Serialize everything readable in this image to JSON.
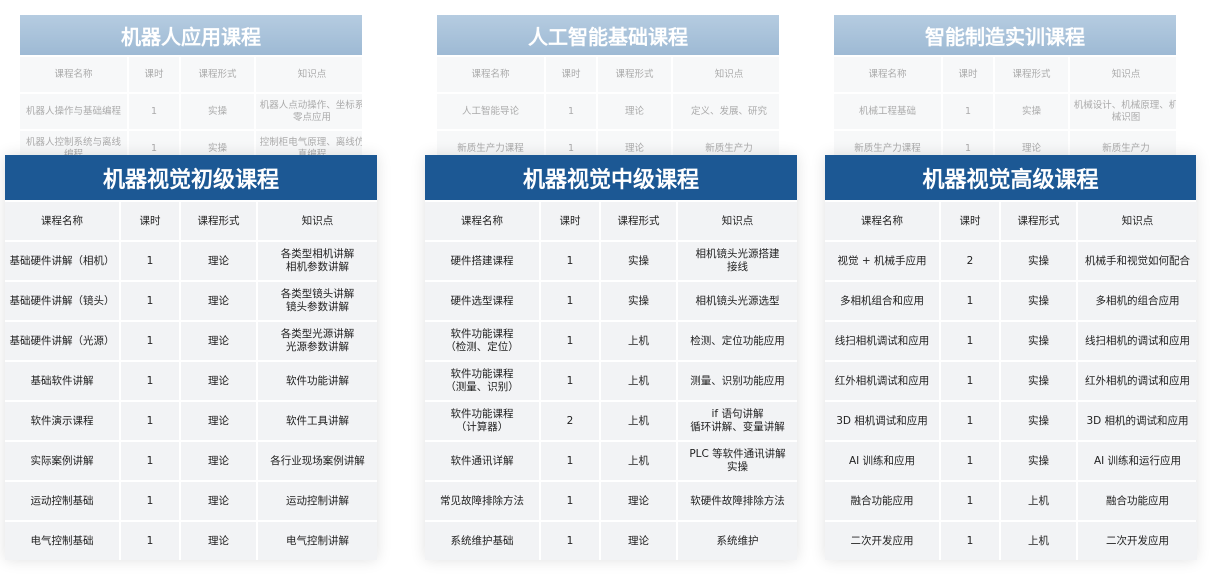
{
  "back_cards": [
    {
      "title": "机器人应用课程",
      "columns": [
        "课程名称",
        "课时",
        "课程形式",
        "知识点"
      ],
      "rows": [
        [
          "机器人操作与基础编程",
          "1",
          "实操",
          "机器人点动操作、坐标系\n零点应用"
        ],
        [
          "机器人控制系统与离线\n编程",
          "1",
          "实操",
          "控制柜电气原理、离线仿\n真编程"
        ]
      ]
    },
    {
      "title": "人工智能基础课程",
      "columns": [
        "课程名称",
        "课时",
        "课程形式",
        "知识点"
      ],
      "rows": [
        [
          "人工智能导论",
          "1",
          "理论",
          "定义、发展、研究"
        ],
        [
          "新质生产力课程",
          "1",
          "理论",
          "新质生产力"
        ]
      ]
    },
    {
      "title": "智能制造实训课程",
      "columns": [
        "课程名称",
        "课时",
        "课程形式",
        "知识点"
      ],
      "rows": [
        [
          "机械工程基础",
          "1",
          "实操",
          "机械设计、机械原理、机\n械识图"
        ],
        [
          "新质生产力课程",
          "1",
          "理论",
          "新质生产力"
        ]
      ]
    }
  ],
  "front_cards": [
    {
      "title": "机器视觉初级课程",
      "columns": [
        "课程名称",
        "课时",
        "课程形式",
        "知识点"
      ],
      "rows": [
        [
          "基础硬件讲解（相机）",
          "1",
          "理论",
          "各类型相机讲解\n相机参数讲解"
        ],
        [
          "基础硬件讲解（镜头）",
          "1",
          "理论",
          "各类型镜头讲解\n镜头参数讲解"
        ],
        [
          "基础硬件讲解（光源）",
          "1",
          "理论",
          "各类型光源讲解\n光源参数讲解"
        ],
        [
          "基础软件讲解",
          "1",
          "理论",
          "软件功能讲解"
        ],
        [
          "软件演示课程",
          "1",
          "理论",
          "软件工具讲解"
        ],
        [
          "实际案例讲解",
          "1",
          "理论",
          "各行业现场案例讲解"
        ],
        [
          "运动控制基础",
          "1",
          "理论",
          "运动控制讲解"
        ],
        [
          "电气控制基础",
          "1",
          "理论",
          "电气控制讲解"
        ]
      ]
    },
    {
      "title": "机器视觉中级课程",
      "columns": [
        "课程名称",
        "课时",
        "课程形式",
        "知识点"
      ],
      "rows": [
        [
          "硬件搭建课程",
          "1",
          "实操",
          "相机镜头光源搭建\n接线"
        ],
        [
          "硬件选型课程",
          "1",
          "实操",
          "相机镜头光源选型"
        ],
        [
          "软件功能课程\n（检测、定位）",
          "1",
          "上机",
          "检测、定位功能应用"
        ],
        [
          "软件功能课程\n（测量、识别）",
          "1",
          "上机",
          "测量、识别功能应用"
        ],
        [
          "软件功能课程\n（计算器）",
          "2",
          "上机",
          "if 语句讲解\n循环讲解、变量讲解"
        ],
        [
          "软件通讯详解",
          "1",
          "上机",
          "PLC 等软件通讯讲解\n实操"
        ],
        [
          "常见故障排除方法",
          "1",
          "理论",
          "软硬件故障排除方法"
        ],
        [
          "系统维护基础",
          "1",
          "理论",
          "系统维护"
        ]
      ]
    },
    {
      "title": "机器视觉高级课程",
      "columns": [
        "课程名称",
        "课时",
        "课程形式",
        "知识点"
      ],
      "rows": [
        [
          "视觉 + 机械手应用",
          "2",
          "实操",
          "机械手和视觉如何配合"
        ],
        [
          "多相机组合和应用",
          "1",
          "实操",
          "多相机的组合应用"
        ],
        [
          "线扫相机调试和应用",
          "1",
          "实操",
          "线扫相机的调试和应用"
        ],
        [
          "红外相机调试和应用",
          "1",
          "实操",
          "红外相机的调试和应用"
        ],
        [
          "3D 相机调试和应用",
          "1",
          "实操",
          "3D 相机的调试和应用"
        ],
        [
          "AI 训练和应用",
          "1",
          "实操",
          "AI 训练和运行应用"
        ],
        [
          "融合功能应用",
          "1",
          "上机",
          "融合功能应用"
        ],
        [
          "二次开发应用",
          "1",
          "上机",
          "二次开发应用"
        ]
      ]
    }
  ]
}
